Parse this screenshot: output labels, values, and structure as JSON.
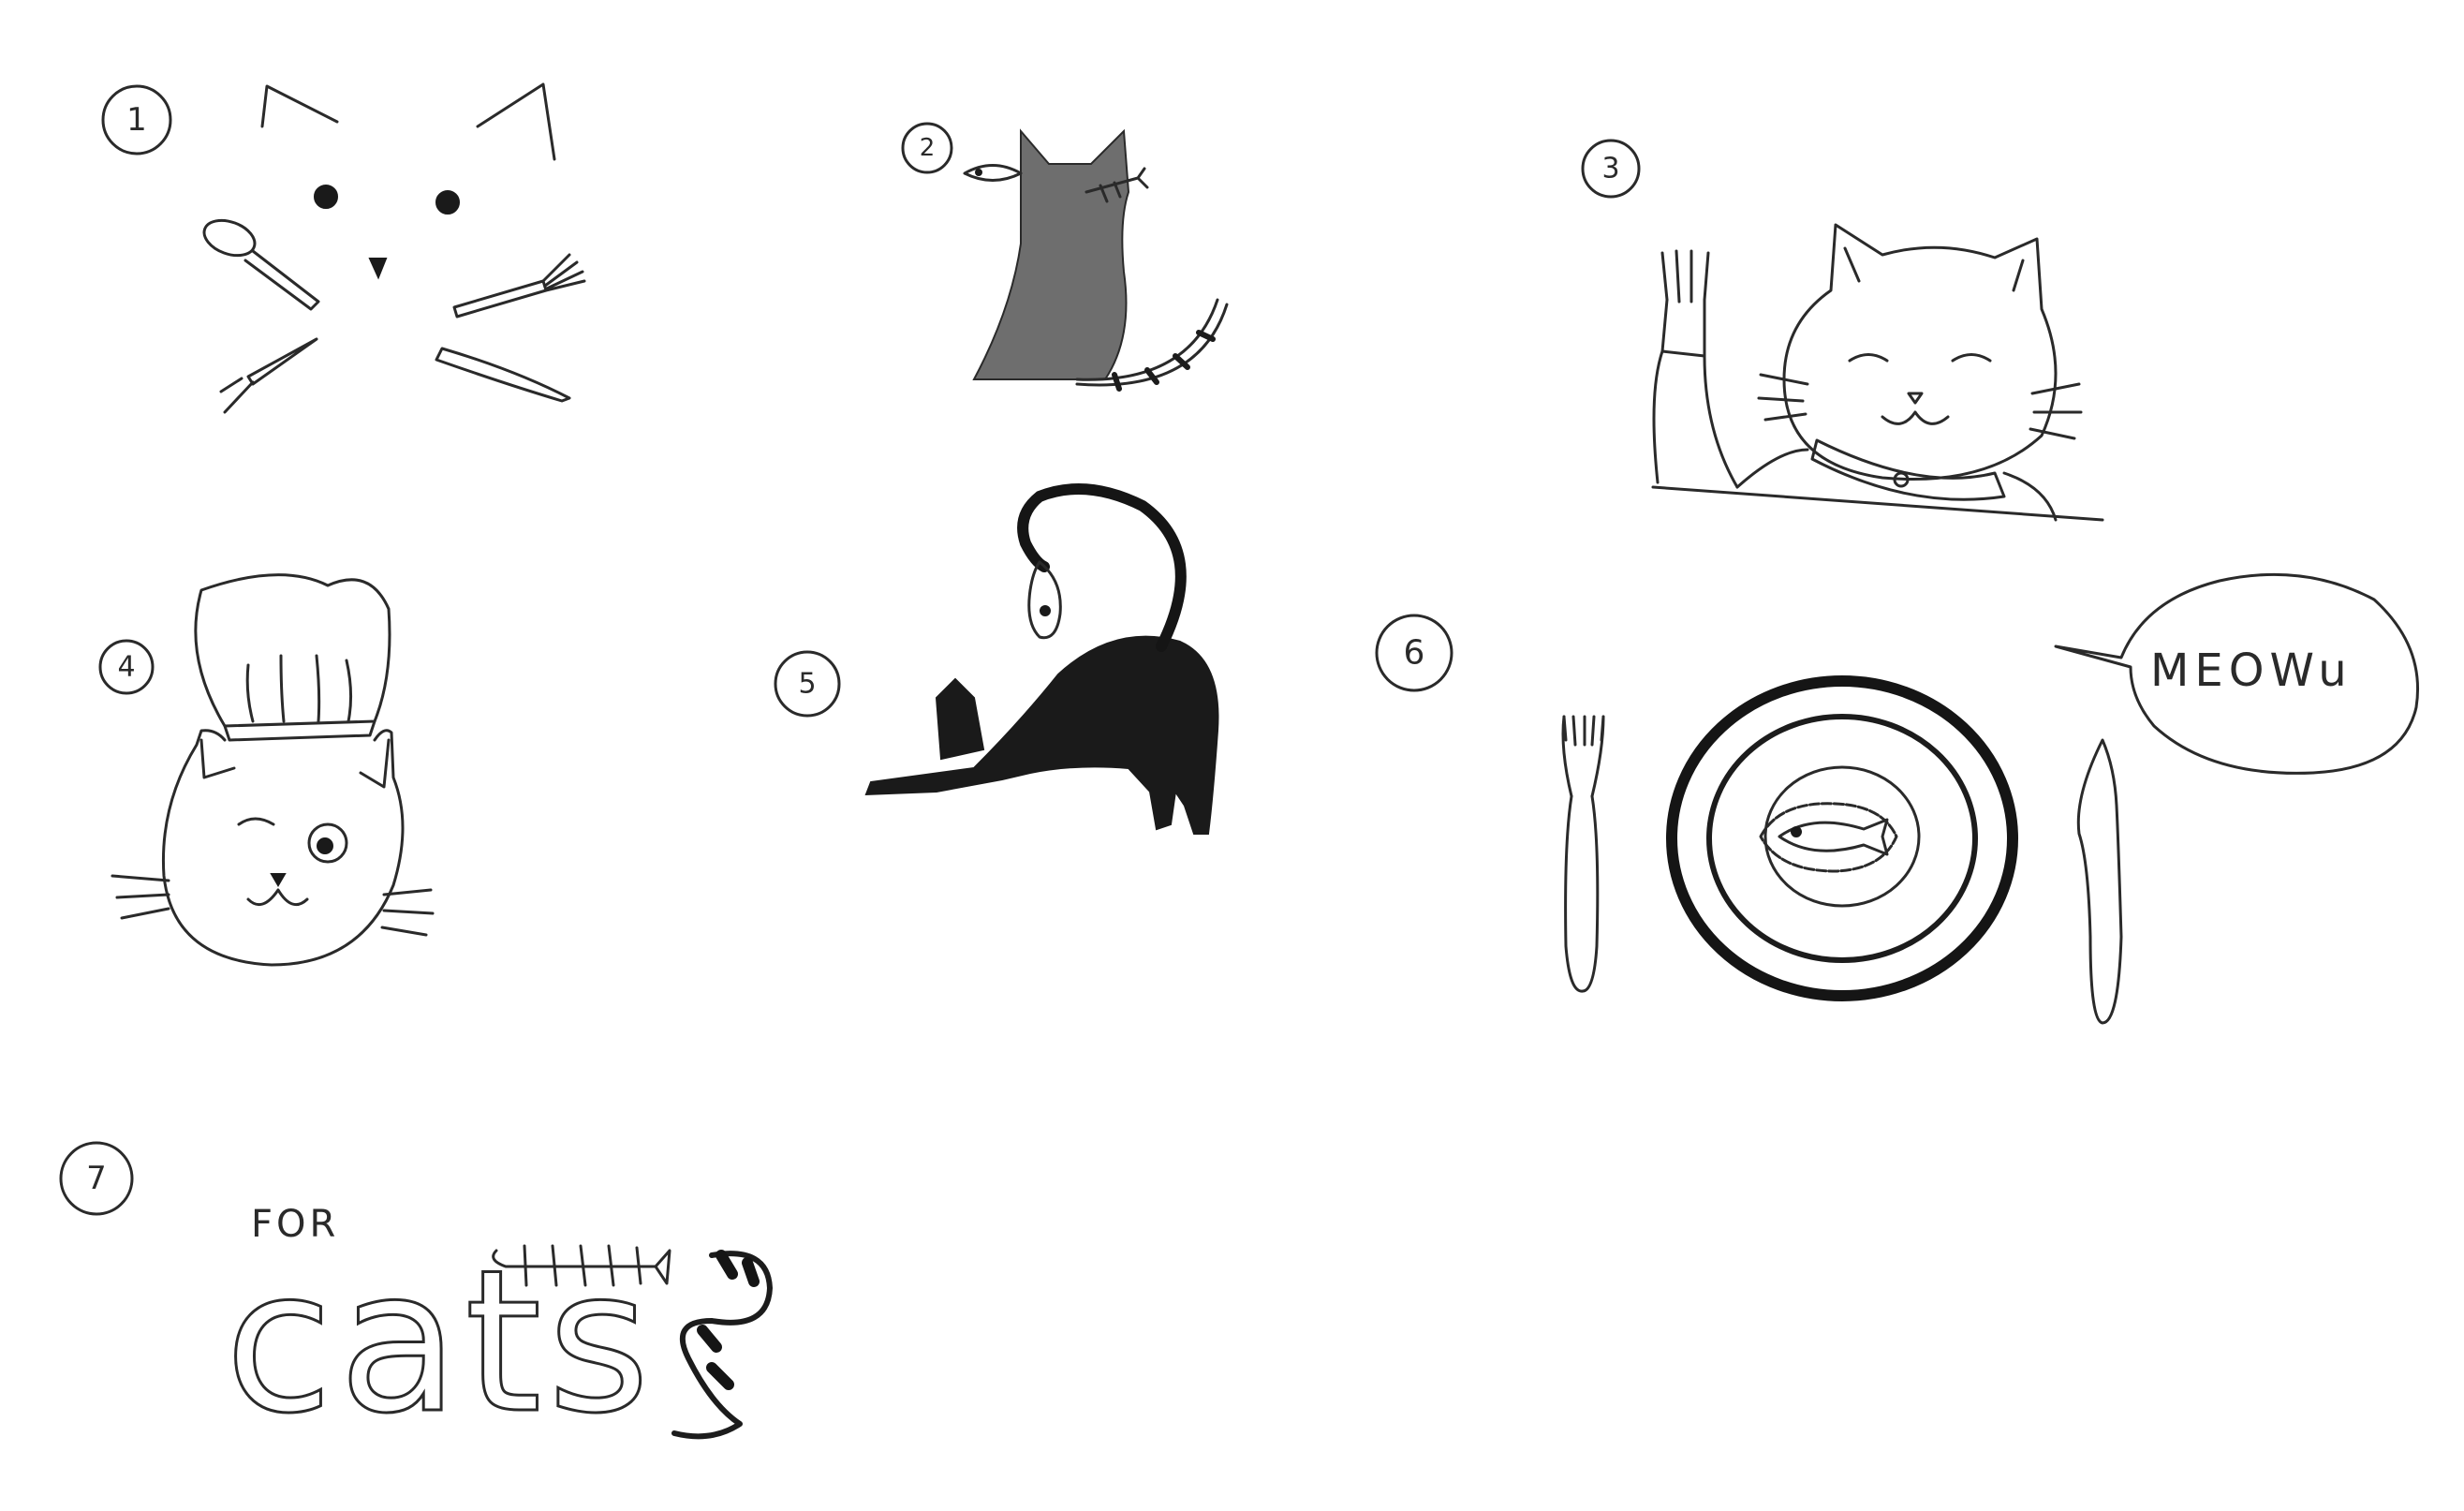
{
  "sketches": [
    {
      "number": "1",
      "subject": "cat-face-with-cutlery"
    },
    {
      "number": "2",
      "subject": "sitting-cat-with-fish"
    },
    {
      "number": "3",
      "subject": "cat-holding-fork"
    },
    {
      "number": "4",
      "subject": "chef-cat"
    },
    {
      "number": "5",
      "subject": "stretching-cat-with-fish"
    },
    {
      "number": "6",
      "subject": "place-setting"
    },
    {
      "number": "7",
      "subject": "for-cats-lettering"
    }
  ],
  "texts": {
    "speech": "MEOWu",
    "for": "FOR",
    "cats": "cats"
  },
  "colors": {
    "paper": "#ffffff",
    "pencil": "#2a2a2a",
    "shade": "#1a1a1a"
  }
}
